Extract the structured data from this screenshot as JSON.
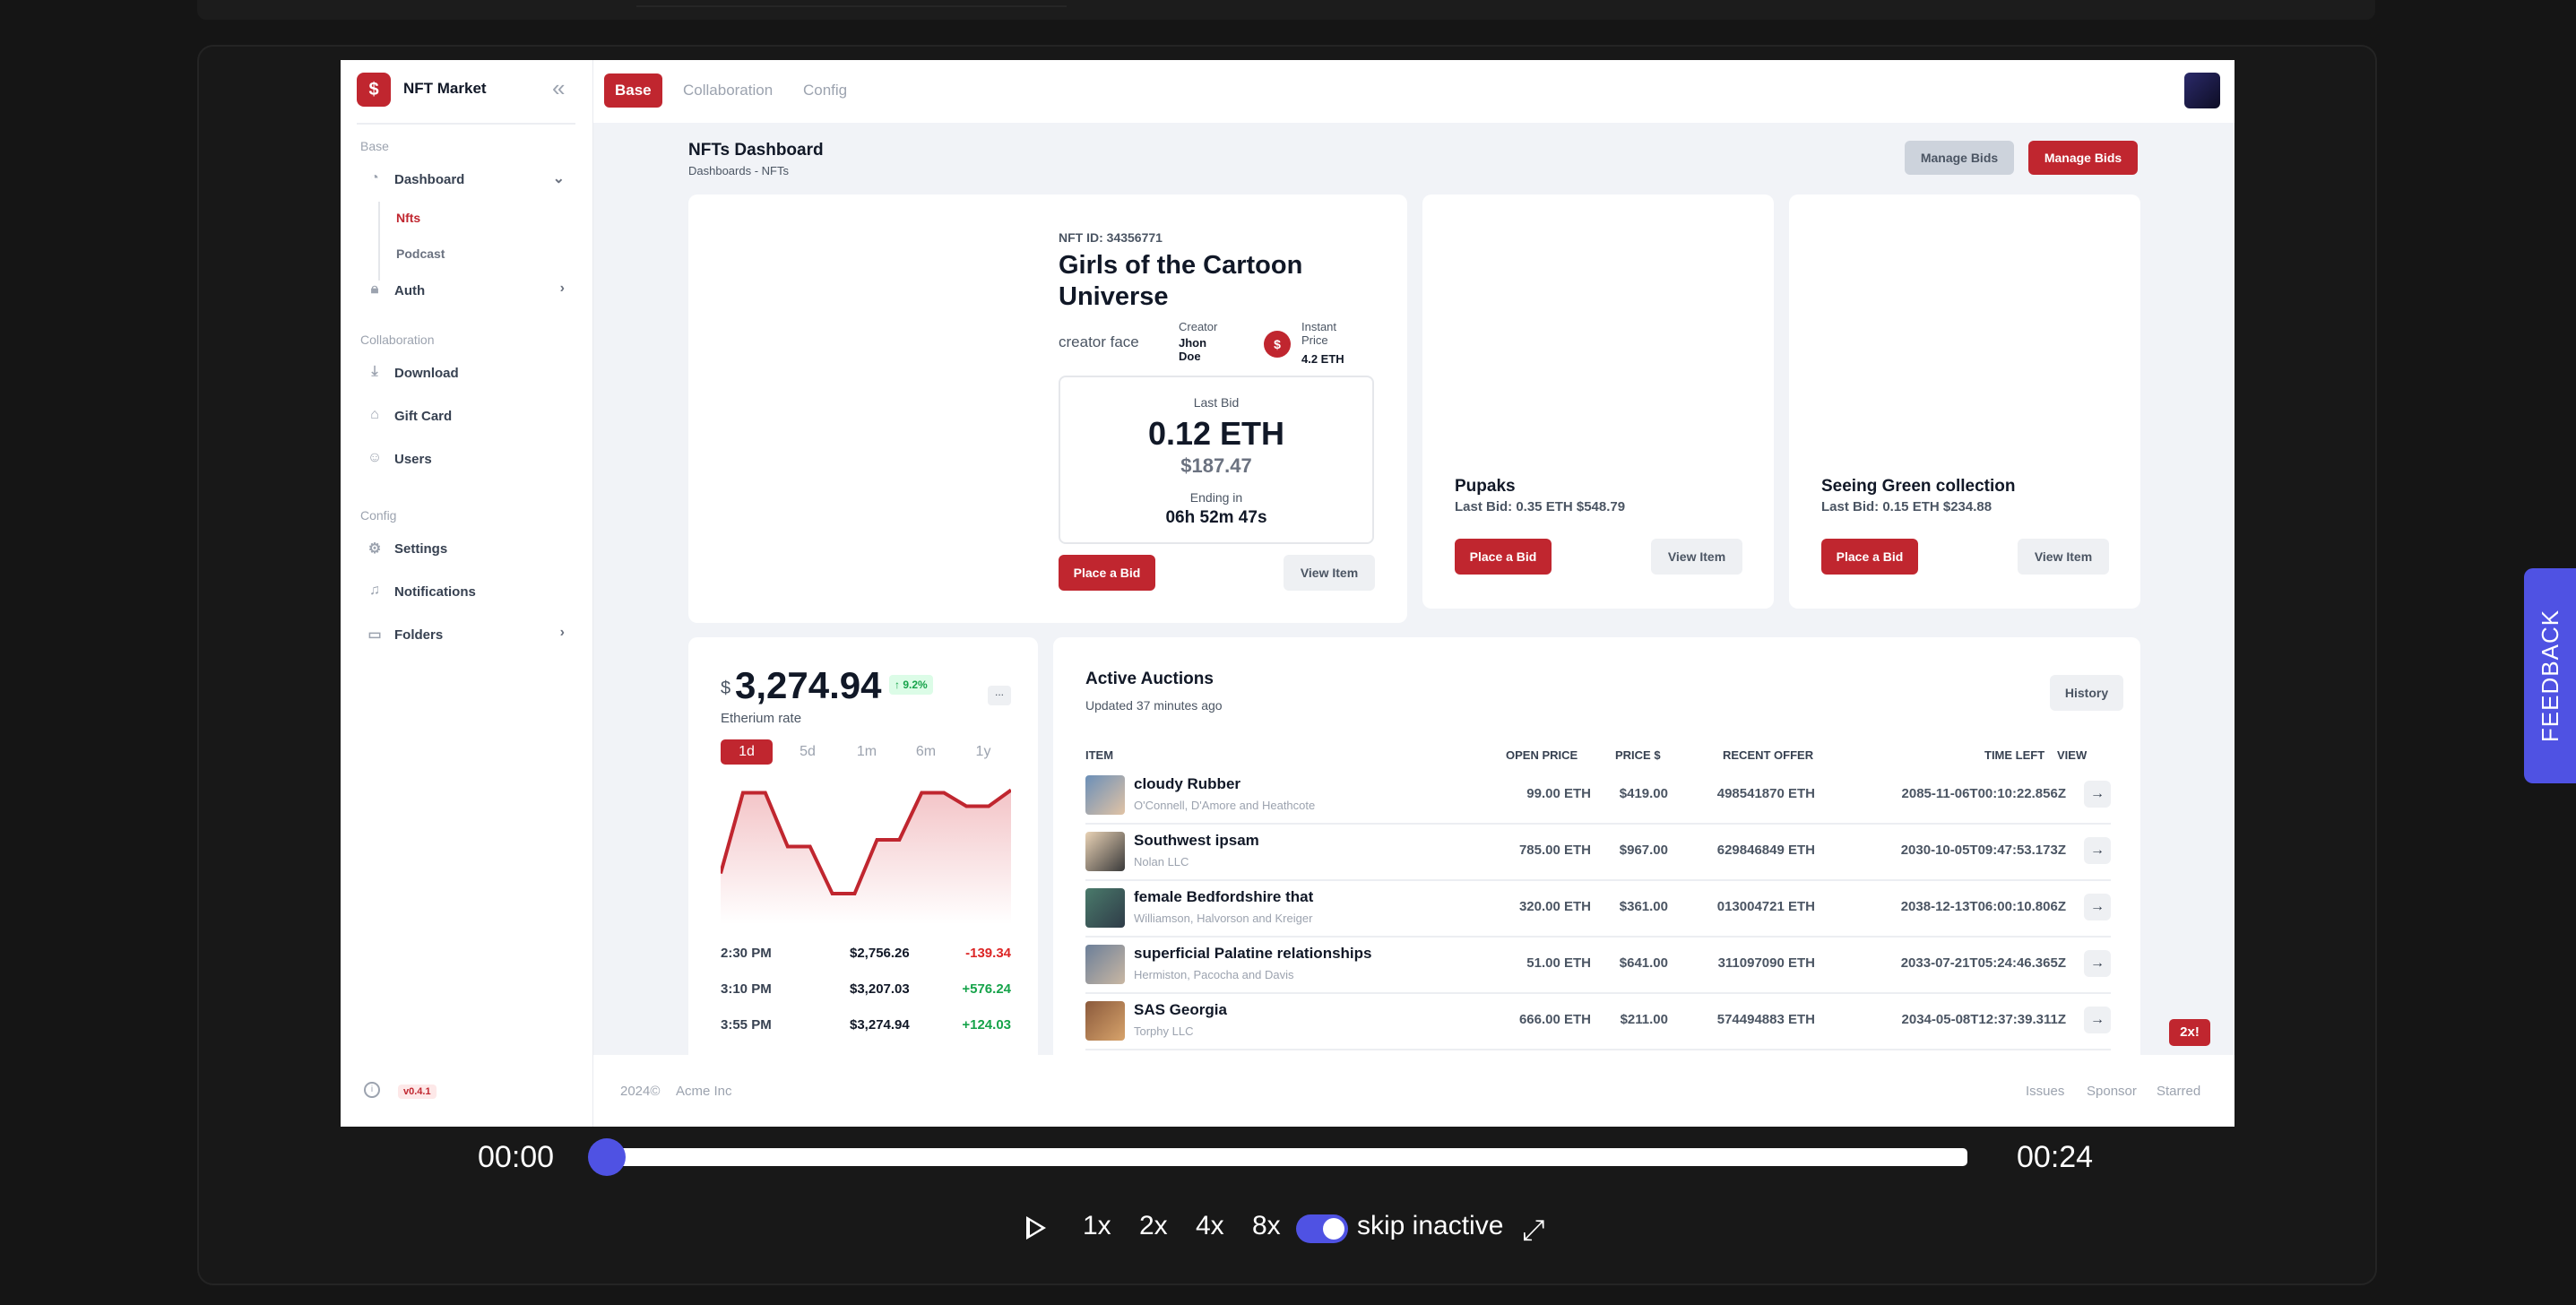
{
  "app": {
    "name": "NFT Market",
    "version": "v0.4.1",
    "tabs": [
      "Base",
      "Collaboration",
      "Config"
    ]
  },
  "sidebar": {
    "sections": [
      "Base",
      "Collaboration",
      "Config"
    ],
    "items": [
      {
        "label": "Dashboard",
        "icon": "pie-chart-icon"
      },
      {
        "label": "Auth",
        "icon": "lock-icon"
      },
      {
        "label": "Download",
        "icon": "download-icon"
      },
      {
        "label": "Gift Card",
        "icon": "gift-icon"
      },
      {
        "label": "Users",
        "icon": "users-icon"
      },
      {
        "label": "Settings",
        "icon": "gear-icon"
      },
      {
        "label": "Notifications",
        "icon": "bell-icon"
      },
      {
        "label": "Folders",
        "icon": "folder-icon"
      }
    ],
    "subitems": [
      "Nfts",
      "Podcast"
    ]
  },
  "header": {
    "title": "NFTs Dashboard",
    "breadcrumb": "Dashboards  - NFTs",
    "btn_manage_gray": "Manage Bids",
    "btn_manage_red": "Manage Bids"
  },
  "featured": {
    "nft_id": "NFT ID: 34356771",
    "title": "Girls of the Cartoon Universe",
    "creator_alt": "creator face",
    "creator_label": "Creator",
    "creator_name": "Jhon Doe",
    "price_label": "Instant Price",
    "price_value": "4.2 ETH",
    "last_bid_label": "Last Bid",
    "last_bid_eth": "0.12 ETH",
    "last_bid_usd": "$187.47",
    "ending_label": "Ending in",
    "ending_value": "06h 52m 47s",
    "place_bid": "Place a Bid",
    "view_item": "View Item"
  },
  "cards": [
    {
      "title": "Pupaks",
      "bid": "Last Bid: 0.35 ETH $548.79",
      "place_bid": "Place a Bid",
      "view_item": "View Item"
    },
    {
      "title": "Seeing Green collection",
      "bid": "Last Bid: 0.15 ETH $234.88",
      "place_bid": "Place a Bid",
      "view_item": "View Item"
    }
  ],
  "rate": {
    "currency": "$",
    "value": "3,274.94",
    "change": "9.2%",
    "label": "Etherium rate",
    "ranges": [
      "1d",
      "5d",
      "1m",
      "6m",
      "1y"
    ],
    "more": "...",
    "rows": [
      {
        "time": "2:30 PM",
        "price": "$2,756.26",
        "delta": "-139.34"
      },
      {
        "time": "3:10 PM",
        "price": "$3,207.03",
        "delta": "+576.24"
      },
      {
        "time": "3:55 PM",
        "price": "$3,274.94",
        "delta": "+124.03"
      }
    ]
  },
  "chart_data": {
    "type": "area",
    "values": [
      0.35,
      0.95,
      0.95,
      0.55,
      0.55,
      0.2,
      0.2,
      0.6,
      0.6,
      0.95,
      0.95,
      0.85,
      0.85,
      0.97
    ]
  },
  "auctions": {
    "title": "Active Auctions",
    "updated": "Updated 37 minutes ago",
    "history": "History",
    "columns": [
      "ITEM",
      "OPEN PRICE",
      "PRICE $",
      "RECENT OFFER",
      "TIME LEFT",
      "VIEW"
    ],
    "rows": [
      {
        "name": "cloudy Rubber",
        "company": "O'Connell, D'Amore and Heathcote",
        "open": "99.00 ETH",
        "price": "$419.00",
        "offer": "498541870 ETH",
        "time": "2085-11-06T00:10:22.856Z"
      },
      {
        "name": "Southwest ipsam",
        "company": "Nolan LLC",
        "open": "785.00 ETH",
        "price": "$967.00",
        "offer": "629846849 ETH",
        "time": "2030-10-05T09:47:53.173Z"
      },
      {
        "name": "female Bedfordshire that",
        "company": "Williamson, Halvorson and Kreiger",
        "open": "320.00 ETH",
        "price": "$361.00",
        "offer": "013004721 ETH",
        "time": "2038-12-13T06:00:10.806Z"
      },
      {
        "name": "superficial Palatine relationships",
        "company": "Hermiston, Pacocha and Davis",
        "open": "51.00 ETH",
        "price": "$641.00",
        "offer": "311097090 ETH",
        "time": "2033-07-21T05:24:46.365Z"
      },
      {
        "name": "SAS Georgia",
        "company": "Torphy LLC",
        "open": "666.00 ETH",
        "price": "$211.00",
        "offer": "574494883 ETH",
        "time": "2034-05-08T12:37:39.311Z"
      }
    ]
  },
  "footer": {
    "copyright": "2024©",
    "company": "Acme Inc",
    "links": [
      "Issues",
      "Sponsor",
      "Starred"
    ]
  },
  "player": {
    "current": "00:00",
    "total": "00:24",
    "speeds": [
      "1x",
      "2x",
      "4x",
      "8x"
    ],
    "skip_label": "skip inactive",
    "speed_badge": "2x!",
    "feedback": "FEEDBACK",
    "progress": 0
  },
  "colors": {
    "accent": "#c0262f",
    "player": "#4f52e3"
  }
}
